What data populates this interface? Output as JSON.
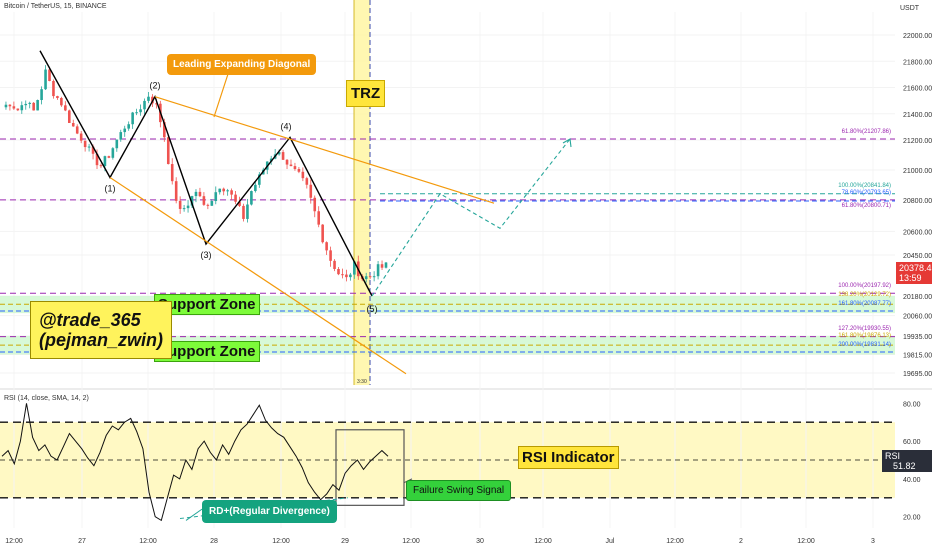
{
  "header": {
    "title": "Bitcoin / TetherUS, 15, BINANCE",
    "currency": "USDT",
    "rsi_title": "RSI (14, close, SMA, 14, 2)"
  },
  "annotations": {
    "leading_diagonal": "Leading Expanding Diagonal",
    "trz": "TRZ",
    "support_zone_1": "Support Zone",
    "support_zone_2": "Support Zone",
    "handle_line1": "@trade_365",
    "handle_line2": "(pejman_zwin)",
    "rsi_indicator": "RSI Indicator",
    "failure_swing": "Failure Swing Signal",
    "regular_divergence": "RD+(Regular Divergence)",
    "wave_labels": [
      "(1)",
      "(2)",
      "(3)",
      "(4)",
      "(5)"
    ],
    "trz_small": "3:30"
  },
  "price_tag": {
    "price": "20378.46",
    "timer": "13:59"
  },
  "rsi_tag": {
    "label": "RSI",
    "value": "51.82"
  },
  "colors": {
    "bull": "#26a69a",
    "bear": "#ef5350",
    "wave": "#000000",
    "trend": "#f39a0c",
    "fib_purple": "#9c27b0",
    "fib_teal": "#26a69a",
    "fib_blue": "#2962ff",
    "zone_green": "#c9f7c9",
    "rsi_band": "#fff9c4",
    "projection": "#26a69a"
  },
  "chart_data": [
    {
      "type": "candlestick",
      "title": "Bitcoin / TetherUS, 15, BINANCE",
      "y_axis_unit": "USDT",
      "y_ticks": [
        22000,
        21800,
        21600,
        21400,
        21200,
        21000,
        20800,
        20600,
        20450,
        20180,
        20060,
        19935,
        19815,
        19695
      ],
      "x_ticks": [
        "12:00",
        "27",
        "12:00",
        "28",
        "12:00",
        "29",
        "12:00",
        "30",
        "12:00",
        "Jul",
        "12:00",
        "2",
        "12:00",
        "3"
      ],
      "price_path_approx": [
        [
          0,
          21450
        ],
        [
          4,
          21480
        ],
        [
          8,
          21430
        ],
        [
          12,
          21500
        ],
        [
          16,
          21420
        ],
        [
          20,
          21600
        ],
        [
          22,
          21720
        ],
        [
          26,
          21560
        ],
        [
          30,
          21480
        ],
        [
          34,
          21350
        ],
        [
          38,
          21250
        ],
        [
          42,
          21180
        ],
        [
          46,
          21080
        ],
        [
          50,
          21030
        ],
        [
          54,
          21100
        ],
        [
          58,
          21200
        ],
        [
          62,
          21300
        ],
        [
          66,
          21380
        ],
        [
          70,
          21450
        ],
        [
          74,
          21540
        ],
        [
          78,
          21460
        ],
        [
          82,
          21230
        ],
        [
          86,
          20900
        ],
        [
          90,
          20720
        ],
        [
          94,
          20780
        ],
        [
          98,
          20860
        ],
        [
          102,
          20760
        ],
        [
          106,
          20810
        ],
        [
          110,
          20900
        ],
        [
          114,
          20870
        ],
        [
          118,
          20780
        ],
        [
          122,
          20690
        ],
        [
          126,
          20860
        ],
        [
          130,
          20950
        ],
        [
          134,
          21060
        ],
        [
          138,
          21120
        ],
        [
          142,
          21090
        ],
        [
          146,
          21010
        ],
        [
          150,
          20960
        ],
        [
          154,
          20880
        ],
        [
          158,
          20720
        ],
        [
          162,
          20560
        ],
        [
          166,
          20420
        ],
        [
          170,
          20330
        ],
        [
          174,
          20290
        ],
        [
          178,
          20380
        ],
        [
          182,
          20300
        ],
        [
          186,
          20310
        ],
        [
          190,
          20360
        ],
        [
          194,
          20378
        ]
      ],
      "waves": [
        {
          "label": "(1)",
          "price": 20950
        },
        {
          "label": "(2)",
          "price": 21530
        },
        {
          "label": "(3)",
          "price": 20520
        },
        {
          "label": "(4)",
          "price": 21220
        },
        {
          "label": "(5)",
          "price": 20180
        }
      ],
      "fib_levels": [
        {
          "label": "61.80%(21207.86)",
          "price": 21207.86,
          "color": "#9c27b0"
        },
        {
          "label": "100.00%(20841.84)",
          "price": 20841.84,
          "color": "#26a69a"
        },
        {
          "label": "78.60%(20793.65)",
          "price": 20793.65,
          "color": "#2962ff"
        },
        {
          "label": "61.80%(20800.71)",
          "price": 20800.71,
          "color": "#9c27b0"
        },
        {
          "label": "100.00%(20197.92)",
          "price": 20197.92,
          "color": "#9c27b0"
        },
        {
          "label": "138.20%(20129.72)",
          "price": 20129.72,
          "color": "#c9a900"
        },
        {
          "label": "161.80%(20087.77)",
          "price": 20087.77,
          "color": "#2962ff"
        },
        {
          "label": "127.20%(19930.55)",
          "price": 19930.55,
          "color": "#9c27b0"
        },
        {
          "label": "161.80%(19876.13)",
          "price": 19876.13,
          "color": "#c9a900"
        },
        {
          "label": "200.00%(19831.14)",
          "price": 19831.14,
          "color": "#2962ff"
        }
      ],
      "support_zones": [
        [
          20075,
          20180
        ],
        [
          19815,
          19935
        ]
      ],
      "current_price": 20378.46
    },
    {
      "type": "line",
      "title": "RSI (14, close, SMA, 14, 2)",
      "y_ticks": [
        80,
        60,
        40,
        20
      ],
      "ylim": [
        14,
        86
      ],
      "band": [
        30,
        70
      ],
      "midline": 50,
      "current_value": 51.82,
      "values": [
        52,
        55,
        48,
        60,
        80,
        62,
        55,
        58,
        52,
        50,
        57,
        64,
        60,
        56,
        51,
        47,
        54,
        63,
        68,
        66,
        70,
        72,
        65,
        56,
        33,
        20,
        18,
        30,
        42,
        40,
        50,
        45,
        56,
        60,
        54,
        50,
        58,
        53,
        60,
        66,
        69,
        74,
        79,
        71,
        67,
        64,
        62,
        57,
        52,
        46,
        38,
        33,
        29,
        32,
        37,
        34,
        43,
        47,
        50,
        45,
        49,
        52,
        55,
        52
      ]
    }
  ]
}
